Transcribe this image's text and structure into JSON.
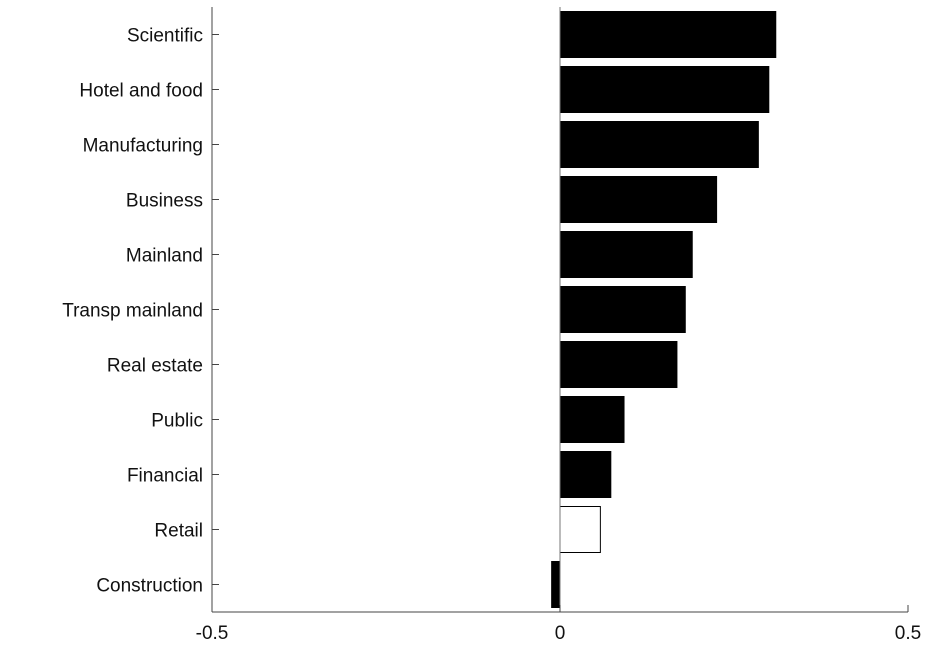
{
  "chart_data": {
    "type": "bar",
    "orientation": "horizontal",
    "categories": [
      "Scientific",
      "Hotel and food",
      "Manufacturing",
      "Business",
      "Mainland",
      "Transp mainland",
      "Real estate",
      "Public",
      "Financial",
      "Retail",
      "Construction"
    ],
    "values": [
      0.31,
      0.3,
      0.285,
      0.225,
      0.19,
      0.18,
      0.168,
      0.092,
      0.073,
      0.058,
      -0.012
    ],
    "fills": [
      "#000000",
      "#000000",
      "#000000",
      "#000000",
      "#000000",
      "#000000",
      "#000000",
      "#000000",
      "#000000",
      "#ffffff",
      "#000000"
    ],
    "xlim": [
      -0.5,
      0.5
    ],
    "xticks": [
      -0.5,
      0,
      0.5
    ],
    "xtick_labels": [
      "-0.5",
      "0",
      "0.5"
    ],
    "title": "",
    "xlabel": "",
    "ylabel": "",
    "grid": false,
    "legend": "none"
  },
  "colors": {
    "bar_fill": "#000000",
    "outlined_bar_fill": "#ffffff",
    "axis": "#444444",
    "text": "#111111"
  }
}
